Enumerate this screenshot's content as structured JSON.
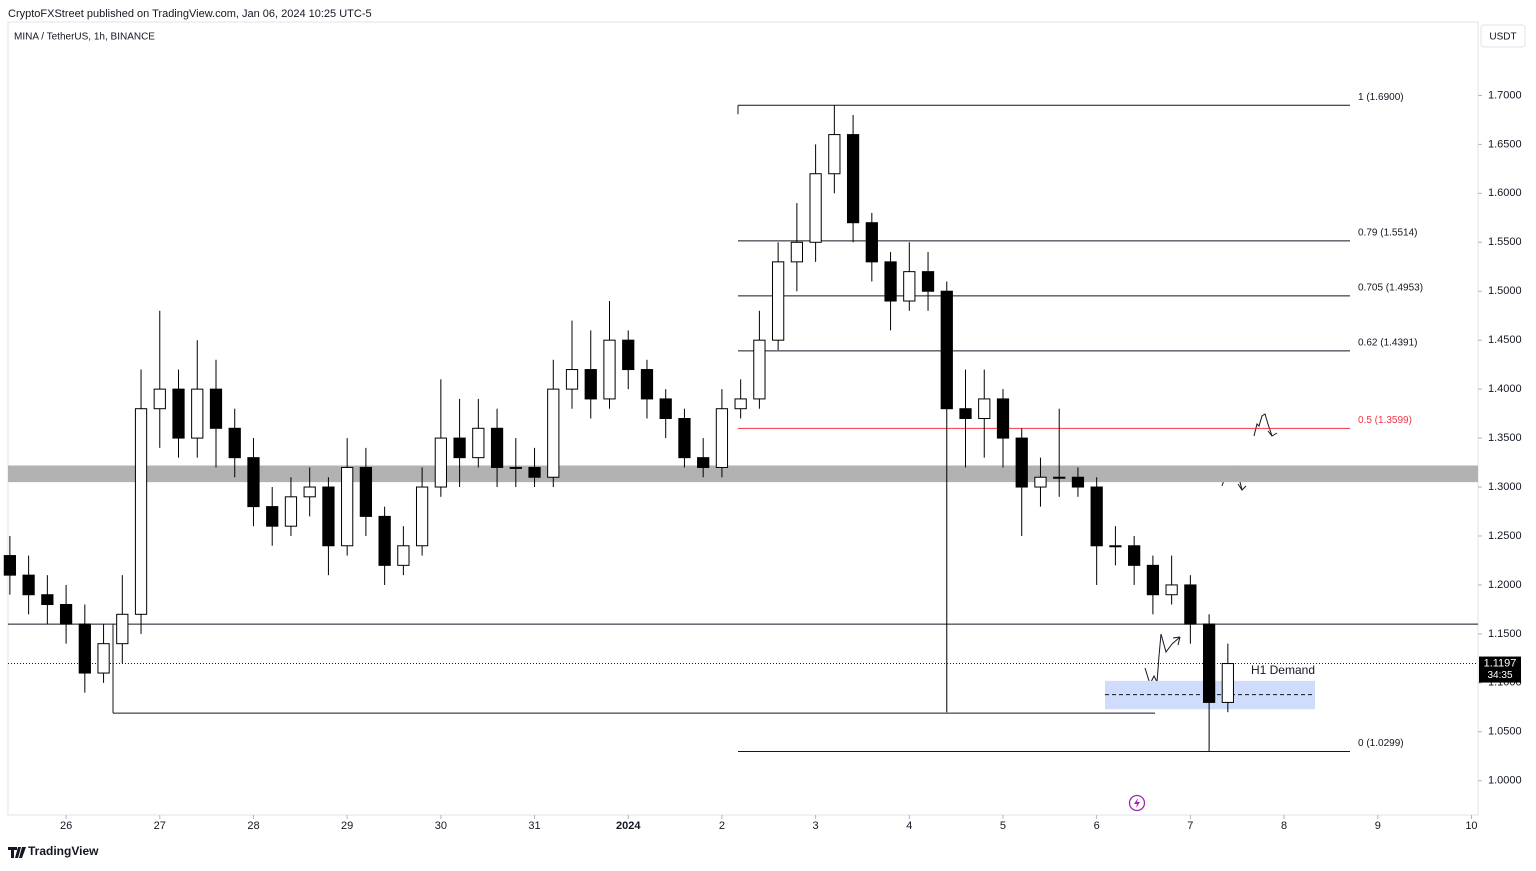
{
  "chart_data": {
    "type": "candlestick",
    "header": "CryptoFXStreet published on TradingView.com, Jan 06, 2024 10:25 UTC-5",
    "title": "MINA / TetherUS, 1h, BINANCE",
    "currency": "USDT",
    "brand": "TradingView",
    "up_color": "#ffffff",
    "down_color": "#000000",
    "x": [
      -0.6,
      -0.4,
      -0.2,
      0,
      0.2,
      0.4,
      0.6,
      0.8,
      1,
      1.2,
      1.4,
      1.6,
      1.8,
      2,
      2.2,
      2.4,
      2.6,
      2.8,
      3,
      3.2,
      3.4,
      3.6,
      3.8,
      4,
      4.2,
      4.4,
      4.6,
      4.8,
      5,
      5.2,
      5.4,
      5.6,
      5.8,
      6,
      6.2,
      6.4,
      6.6,
      6.8,
      7,
      7.2,
      7.4,
      7.6,
      7.8,
      8,
      8.2,
      8.4,
      8.6,
      8.8,
      9,
      9.2,
      9.4,
      9.6,
      9.8,
      10,
      10.2,
      10.4,
      10.6,
      10.8,
      11,
      11.2,
      11.4,
      11.6,
      11.8,
      12,
      12.2,
      12.4
    ],
    "open": [
      1.23,
      1.21,
      1.19,
      1.18,
      1.16,
      1.11,
      1.14,
      1.17,
      1.38,
      1.4,
      1.35,
      1.4,
      1.36,
      1.33,
      1.28,
      1.26,
      1.29,
      1.3,
      1.24,
      1.32,
      1.27,
      1.22,
      1.24,
      1.3,
      1.35,
      1.33,
      1.36,
      1.32,
      1.32,
      1.31,
      1.4,
      1.42,
      1.39,
      1.45,
      1.42,
      1.39,
      1.37,
      1.33,
      1.32,
      1.38,
      1.39,
      1.45,
      1.53,
      1.55,
      1.62,
      1.66,
      1.57,
      1.53,
      1.49,
      1.52,
      1.5,
      1.38,
      1.37,
      1.39,
      1.35,
      1.3,
      1.31,
      1.31,
      1.3,
      1.24,
      1.24,
      1.22,
      1.19,
      1.2,
      1.16,
      1.08
    ],
    "high": [
      1.25,
      1.23,
      1.21,
      1.2,
      1.18,
      1.16,
      1.21,
      1.42,
      1.48,
      1.42,
      1.45,
      1.43,
      1.38,
      1.35,
      1.3,
      1.31,
      1.32,
      1.31,
      1.35,
      1.34,
      1.28,
      1.26,
      1.32,
      1.41,
      1.39,
      1.39,
      1.38,
      1.35,
      1.34,
      1.43,
      1.47,
      1.46,
      1.49,
      1.46,
      1.43,
      1.4,
      1.38,
      1.35,
      1.4,
      1.41,
      1.48,
      1.55,
      1.59,
      1.65,
      1.69,
      1.68,
      1.58,
      1.54,
      1.55,
      1.54,
      1.51,
      1.42,
      1.42,
      1.4,
      1.36,
      1.33,
      1.38,
      1.32,
      1.31,
      1.26,
      1.25,
      1.23,
      1.23,
      1.21,
      1.17,
      1.14
    ],
    "low": [
      1.19,
      1.17,
      1.16,
      1.14,
      1.09,
      1.1,
      1.12,
      1.15,
      1.34,
      1.33,
      1.33,
      1.32,
      1.31,
      1.26,
      1.24,
      1.25,
      1.27,
      1.21,
      1.23,
      1.25,
      1.2,
      1.21,
      1.23,
      1.29,
      1.3,
      1.32,
      1.3,
      1.3,
      1.3,
      1.3,
      1.38,
      1.37,
      1.38,
      1.4,
      1.37,
      1.35,
      1.32,
      1.31,
      1.31,
      1.37,
      1.38,
      1.44,
      1.5,
      1.53,
      1.6,
      1.55,
      1.51,
      1.46,
      1.48,
      1.48,
      1.07,
      1.32,
      1.33,
      1.32,
      1.25,
      1.28,
      1.29,
      1.29,
      1.2,
      1.22,
      1.2,
      1.17,
      1.18,
      1.14,
      1.03,
      1.07
    ],
    "close": [
      1.21,
      1.19,
      1.18,
      1.16,
      1.11,
      1.14,
      1.17,
      1.38,
      1.4,
      1.35,
      1.4,
      1.36,
      1.33,
      1.28,
      1.26,
      1.29,
      1.3,
      1.24,
      1.32,
      1.27,
      1.22,
      1.24,
      1.3,
      1.35,
      1.33,
      1.36,
      1.32,
      1.32,
      1.31,
      1.4,
      1.42,
      1.39,
      1.45,
      1.42,
      1.39,
      1.37,
      1.33,
      1.32,
      1.38,
      1.39,
      1.45,
      1.53,
      1.55,
      1.62,
      1.66,
      1.57,
      1.53,
      1.49,
      1.52,
      1.5,
      1.38,
      1.37,
      1.39,
      1.35,
      1.3,
      1.31,
      1.31,
      1.3,
      1.24,
      1.24,
      1.22,
      1.19,
      1.2,
      1.16,
      1.08,
      1.1197
    ],
    "last_price": {
      "value": 1.1197,
      "label": "1.1197"
    },
    "countdown": "34:35",
    "xlim": [
      -0.62,
      15.07
    ],
    "ylim": [
      0.965,
      1.775
    ],
    "xticks": [
      {
        "value": 0,
        "label": "26"
      },
      {
        "value": 1,
        "label": "27"
      },
      {
        "value": 2,
        "label": "28"
      },
      {
        "value": 3,
        "label": "29"
      },
      {
        "value": 4,
        "label": "30"
      },
      {
        "value": 5,
        "label": "31"
      },
      {
        "value": 6,
        "label": "2024"
      },
      {
        "value": 7,
        "label": "2"
      },
      {
        "value": 8,
        "label": "3"
      },
      {
        "value": 9,
        "label": "4"
      },
      {
        "value": 10,
        "label": "5"
      },
      {
        "value": 11,
        "label": "6"
      },
      {
        "value": 12,
        "label": "7"
      },
      {
        "value": 13,
        "label": "8"
      },
      {
        "value": 14,
        "label": "9"
      },
      {
        "value": 15,
        "label": "10"
      }
    ],
    "yticks": [
      {
        "value": 1.0,
        "label": "1.0000"
      },
      {
        "value": 1.05,
        "label": "1.0500"
      },
      {
        "value": 1.1,
        "label": "1.1000"
      },
      {
        "value": 1.15,
        "label": "1.1500"
      },
      {
        "value": 1.2,
        "label": "1.2000"
      },
      {
        "value": 1.25,
        "label": "1.2500"
      },
      {
        "value": 1.3,
        "label": "1.3000"
      },
      {
        "value": 1.35,
        "label": "1.3500"
      },
      {
        "value": 1.4,
        "label": "1.4000"
      },
      {
        "value": 1.45,
        "label": "1.4500"
      },
      {
        "value": 1.5,
        "label": "1.5000"
      },
      {
        "value": 1.55,
        "label": "1.5500"
      },
      {
        "value": 1.6,
        "label": "1.6000"
      },
      {
        "value": 1.65,
        "label": "1.6500"
      },
      {
        "value": 1.7,
        "label": "1.7000"
      }
    ],
    "fib_color": "#131722",
    "fib_levels": [
      {
        "label": "1 (1.6900)",
        "value": 1.69
      },
      {
        "label": "0.79 (1.5514)",
        "value": 1.5514
      },
      {
        "label": "0.705 (1.4953)",
        "value": 1.4953
      },
      {
        "label": "0.62 (1.4391)",
        "value": 1.4391
      },
      {
        "label": "0.5 (1.3599)",
        "value": 1.3599,
        "color": "#f23645"
      },
      {
        "label": "0 (1.0299)",
        "value": 1.0299
      }
    ],
    "horizontal_lines": [
      1.16,
      1.069
    ],
    "zone": [
      1.305,
      1.322
    ],
    "demand_zone": {
      "label": "H1 Demand",
      "low": 1.073,
      "high": 1.102,
      "mid": 1.088
    }
  }
}
